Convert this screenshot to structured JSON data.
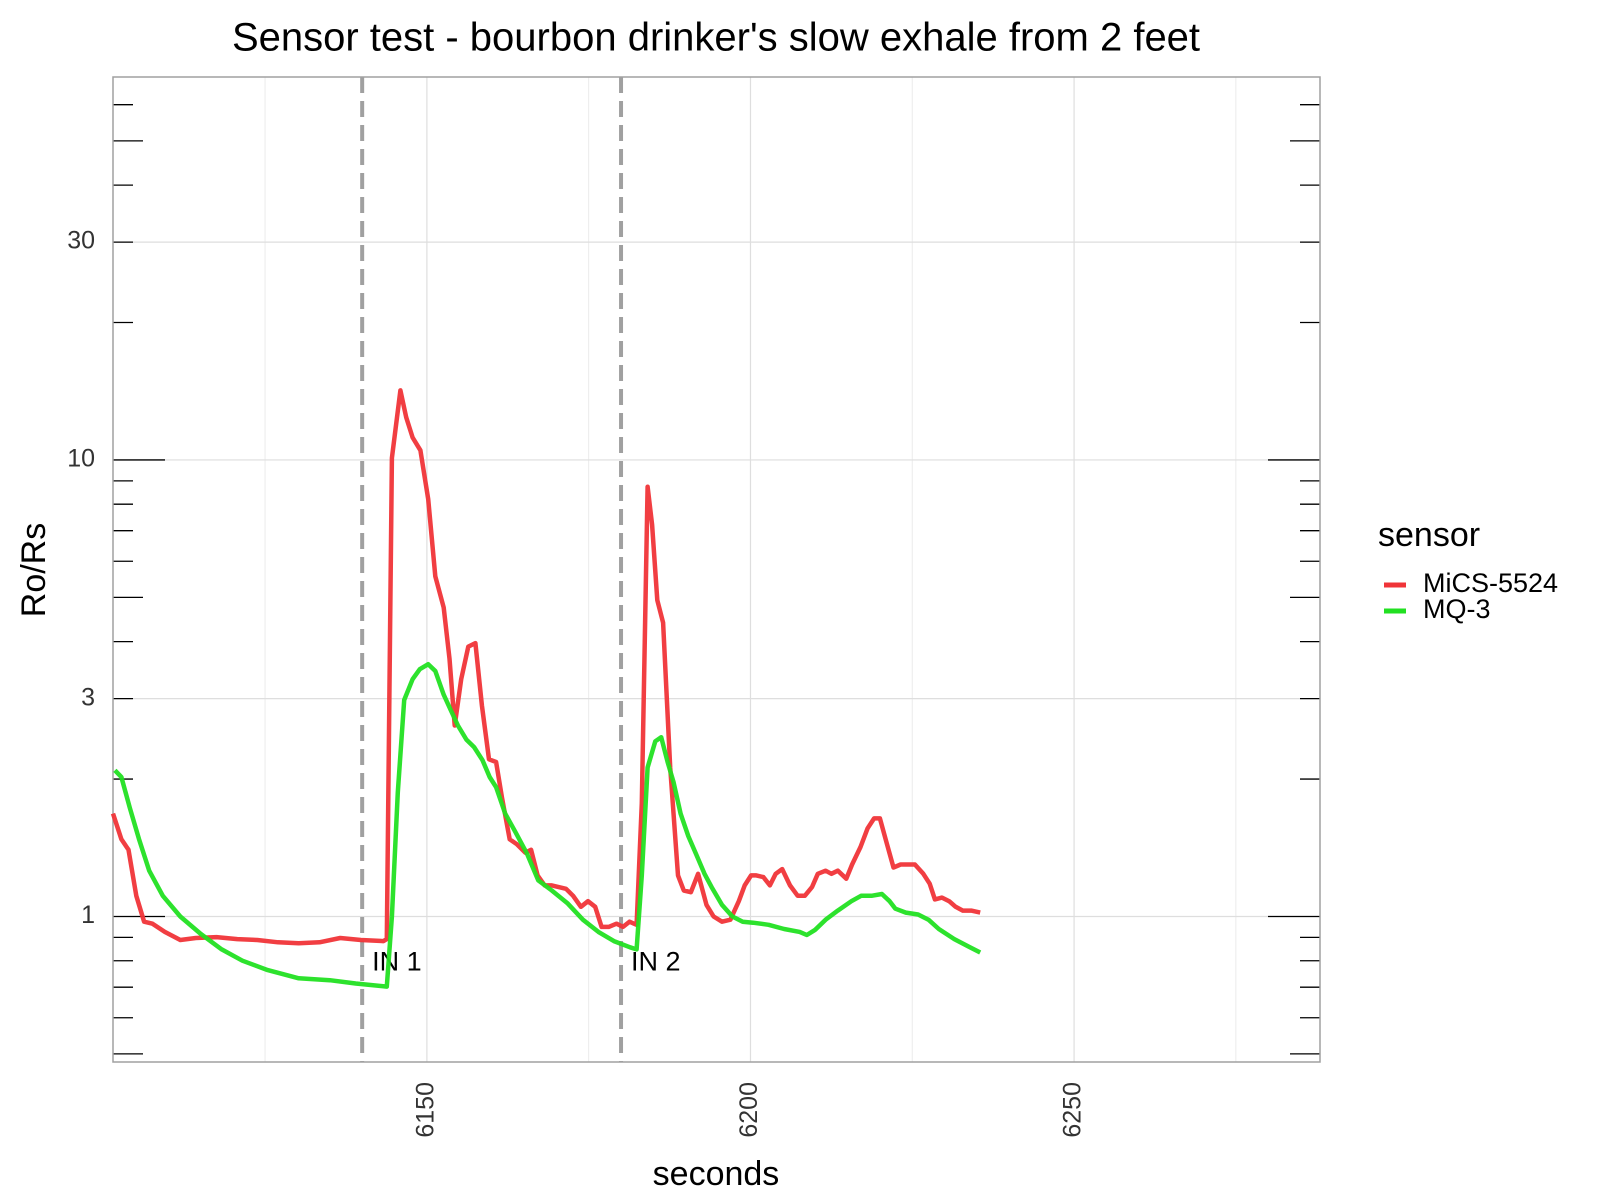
{
  "chart_data": {
    "type": "line",
    "title": "Sensor test - bourbon drinker's slow exhale from 2 feet",
    "x_label": "seconds",
    "y_label": "Ro/Rs",
    "legend_title": "sensor",
    "legend_position": "right",
    "y_scale": "log",
    "grid": true,
    "logticks": true,
    "xlim": [
      6101.5,
      6288
    ],
    "ylim": [
      0.48,
      69
    ],
    "xticks": [
      6150,
      6200,
      6250
    ],
    "minor_xticks": [
      6125,
      6175,
      6225,
      6275
    ],
    "yticks": [
      1,
      3,
      10,
      30
    ],
    "vlines": [
      {
        "x": 6140,
        "label": "IN 1",
        "label_y": 0.79
      },
      {
        "x": 6180,
        "label": "IN 2",
        "label_y": 0.79
      }
    ],
    "series": [
      {
        "name": "MiCS-5524",
        "color": "#f03438",
        "x": [
          6101.5,
          6102.8,
          6103.9,
          6105.1,
          6106.3,
          6107.6,
          6109.5,
          6111.9,
          6114.3,
          6117.5,
          6120.7,
          6123.8,
          6127.0,
          6130.2,
          6133.4,
          6136.6,
          6139.8,
          6143.3,
          6143.8,
          6144.6,
          6145.9,
          6146.8,
          6147.8,
          6149.0,
          6150.2,
          6151.3,
          6152.6,
          6153.5,
          6154.3,
          6155.3,
          6156.4,
          6157.5,
          6158.5,
          6159.6,
          6160.7,
          6161.6,
          6162.8,
          6163.9,
          6165.2,
          6166.1,
          6167.1,
          6168.2,
          6169.3,
          6171.5,
          6172.6,
          6173.8,
          6174.9,
          6176.0,
          6177.0,
          6178.1,
          6179.3,
          6180.3,
          6181.3,
          6182.4,
          6183.2,
          6184.1,
          6184.8,
          6185.6,
          6186.5,
          6187.6,
          6188.8,
          6189.7,
          6190.8,
          6191.9,
          6193.2,
          6194.3,
          6195.6,
          6196.9,
          6198.2,
          6199.1,
          6200.1,
          6200.9,
          6202.0,
          6203.0,
          6203.9,
          6204.9,
          6206.1,
          6207.3,
          6208.4,
          6209.5,
          6210.4,
          6211.6,
          6212.5,
          6213.5,
          6214.8,
          6215.7,
          6217.0,
          6218.1,
          6219.1,
          6220.0,
          6221.1,
          6222.1,
          6223.2,
          6224.3,
          6225.4,
          6226.7,
          6227.7,
          6228.5,
          6229.6,
          6230.7,
          6231.7,
          6232.8,
          6234.1,
          6235.5
        ],
        "values": [
          1.68,
          1.476,
          1.4,
          1.11,
          0.974,
          0.964,
          0.925,
          0.888,
          0.897,
          0.901,
          0.892,
          0.888,
          0.878,
          0.874,
          0.878,
          0.897,
          0.888,
          0.883,
          0.892,
          10.1,
          14.2,
          12.4,
          11.2,
          10.5,
          8.21,
          5.56,
          4.75,
          3.67,
          2.62,
          3.31,
          3.9,
          3.97,
          2.9,
          2.21,
          2.18,
          1.82,
          1.476,
          1.44,
          1.38,
          1.4,
          1.23,
          1.17,
          1.17,
          1.15,
          1.11,
          1.05,
          1.08,
          1.05,
          0.949,
          0.949,
          0.964,
          0.949,
          0.974,
          0.959,
          1.77,
          8.74,
          7.21,
          4.93,
          4.4,
          2.12,
          1.23,
          1.14,
          1.13,
          1.24,
          1.06,
          1.0,
          0.974,
          0.984,
          1.08,
          1.17,
          1.23,
          1.23,
          1.22,
          1.17,
          1.24,
          1.27,
          1.17,
          1.11,
          1.11,
          1.16,
          1.24,
          1.26,
          1.24,
          1.26,
          1.21,
          1.3,
          1.42,
          1.56,
          1.64,
          1.64,
          1.44,
          1.28,
          1.3,
          1.3,
          1.3,
          1.24,
          1.18,
          1.09,
          1.1,
          1.08,
          1.05,
          1.03,
          1.03,
          1.02
        ]
      },
      {
        "name": "MQ-3",
        "color": "#22e022",
        "x": [
          6101.8,
          6102.8,
          6104.1,
          6105.5,
          6107.1,
          6109.2,
          6111.9,
          6115.1,
          6118.3,
          6121.5,
          6125.4,
          6130.2,
          6135.0,
          6139.0,
          6143.8,
          6144.6,
          6145.5,
          6146.5,
          6147.8,
          6148.9,
          6150.2,
          6151.3,
          6152.6,
          6153.7,
          6154.8,
          6156.1,
          6157.3,
          6158.6,
          6159.7,
          6160.7,
          6162.1,
          6163.7,
          6165.5,
          6167.2,
          6169.3,
          6171.7,
          6174.1,
          6176.5,
          6178.9,
          6181.4,
          6182.4,
          6183.2,
          6184.1,
          6185.3,
          6186.2,
          6187.2,
          6188.1,
          6189.2,
          6190.4,
          6191.6,
          6192.9,
          6194.0,
          6195.6,
          6197.2,
          6198.8,
          6200.4,
          6202.8,
          6205.2,
          6207.6,
          6208.7,
          6210.0,
          6211.6,
          6213.5,
          6215.6,
          6217.1,
          6218.7,
          6220.3,
          6221.5,
          6222.4,
          6224.0,
          6225.9,
          6227.5,
          6229.1,
          6231.5,
          6233.9,
          6235.5
        ],
        "values": [
          2.09,
          2.02,
          1.73,
          1.48,
          1.26,
          1.11,
          1.0,
          0.915,
          0.847,
          0.8,
          0.763,
          0.732,
          0.725,
          0.713,
          0.702,
          1.0,
          1.87,
          2.98,
          3.31,
          3.48,
          3.57,
          3.45,
          3.06,
          2.83,
          2.62,
          2.44,
          2.35,
          2.2,
          2.02,
          1.92,
          1.68,
          1.53,
          1.37,
          1.2,
          1.14,
          1.07,
          0.984,
          0.925,
          0.883,
          0.856,
          0.847,
          1.23,
          2.12,
          2.42,
          2.47,
          2.18,
          1.97,
          1.68,
          1.5,
          1.37,
          1.24,
          1.16,
          1.06,
          1.0,
          0.974,
          0.969,
          0.959,
          0.939,
          0.925,
          0.911,
          0.935,
          0.984,
          1.03,
          1.08,
          1.11,
          1.11,
          1.12,
          1.08,
          1.04,
          1.02,
          1.01,
          0.984,
          0.939,
          0.892,
          0.856,
          0.834
        ]
      }
    ]
  }
}
